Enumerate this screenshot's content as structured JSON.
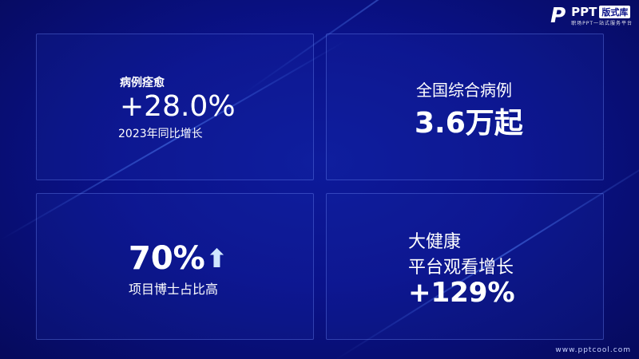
{
  "logo": {
    "brand": "PPT",
    "badge": "版式库",
    "subtitle": "职场PPT一站式服务平台"
  },
  "cards": [
    {
      "label": "病例痊愈",
      "value": "+28.0%",
      "caption": "2023年同比增长"
    },
    {
      "label": "全国综合病例",
      "value": "3.6万起"
    },
    {
      "value": "70%",
      "icon": "arrow-up-icon",
      "caption": "项目博士占比高"
    },
    {
      "line1": "大健康",
      "line2": "平台观看增长",
      "value": "+129%"
    }
  ],
  "footer": {
    "url": "www.pptcool.com"
  },
  "colors": {
    "background": "#0a128a",
    "accent": "#5fb4ff"
  }
}
